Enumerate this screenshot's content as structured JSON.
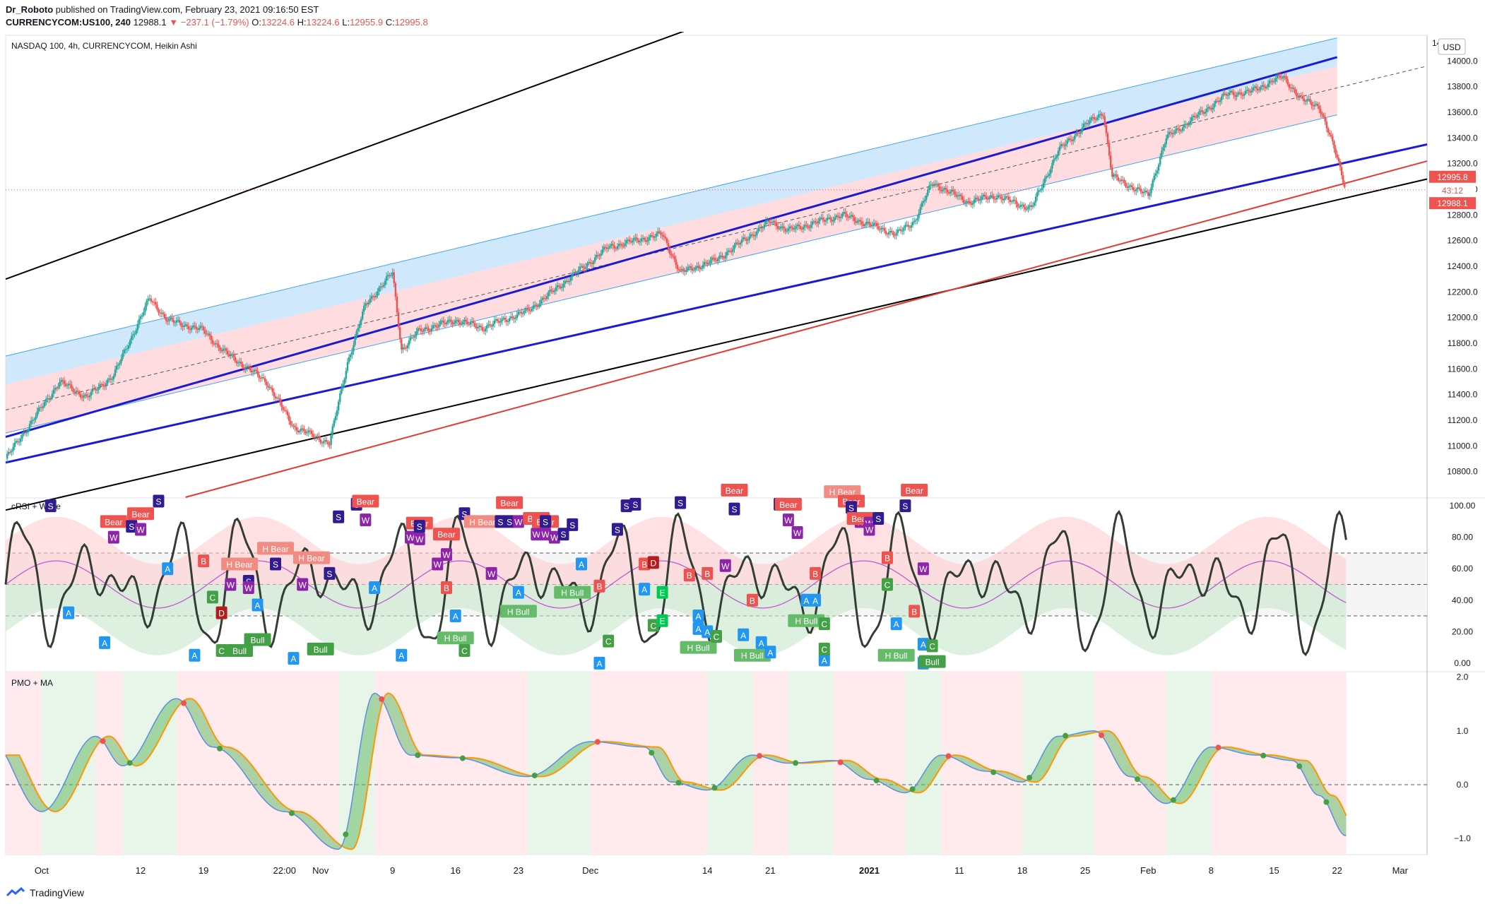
{
  "header": {
    "publisher": "Dr_Roboto",
    "published_text": "published on TradingView.com, February 23, 2021 09:16:50 EST",
    "symbol": "CURRENCYCOM:US100, 240",
    "last": "12988.1",
    "change": "−237.1 (−1.79%)",
    "o_label": "O:",
    "o": "13224.6",
    "h_label": "H:",
    "h": "13224.6",
    "l_label": "L:",
    "l": "12955.9",
    "c_label": "C:",
    "c": "12995.8"
  },
  "footer": {
    "brand": "TradingView"
  },
  "colors": {
    "up": "#26a69a",
    "down": "#ef5350",
    "blue_line": "#1a1ad6",
    "channel_blue": "#bbdefb",
    "channel_red": "#ffcdd2",
    "rsi_line": "#333d33",
    "ma_pink": "#c05ad0",
    "pmo_green": "#4caf50",
    "pmo_orange": "#ff9800",
    "pmo_blue": "#5b8ee6",
    "bg_green": "#e8f5e9",
    "bg_red": "#ffebee"
  },
  "chart_data": [
    {
      "type": "candlestick",
      "title": "NASDAQ 100, 4h, CURRENCYCOM, Heikin Ashi",
      "currency": "USD",
      "ylim": [
        10600,
        14200
      ],
      "yticks": [
        "10800.0",
        "11000.0",
        "11200.0",
        "11400.0",
        "11600.0",
        "11800.0",
        "12000.0",
        "12200.0",
        "12400.0",
        "12600.0",
        "12800.0",
        "13000.0",
        "13200.0",
        "13400.0",
        "13600.0",
        "13800.0",
        "14000.0"
      ],
      "ytick_values": [
        10800,
        11000,
        11200,
        11400,
        11600,
        11800,
        12000,
        12200,
        12400,
        12600,
        12800,
        13000,
        13200,
        13400,
        13600,
        13800,
        14000
      ],
      "top_tick_partial": "14",
      "xticks": [
        "Oct",
        "12",
        "19",
        "22:00",
        "Nov",
        "9",
        "16",
        "23",
        "Dec",
        "14",
        "21",
        "2021",
        "11",
        "18",
        "25",
        "Feb",
        "8",
        "15",
        "22",
        "Mar"
      ],
      "x_bold": [
        "2021"
      ],
      "price_labels": [
        "12995.8",
        "43:12",
        "12988.1"
      ],
      "price_label_values": [
        12995.8,
        12990.0,
        12988.1
      ],
      "price_path": [
        [
          "Oct 1",
          11300
        ],
        [
          "Oct 3",
          11500
        ],
        [
          "Oct 6",
          11380
        ],
        [
          "Oct 9",
          11550
        ],
        [
          "Oct 13",
          12150
        ],
        [
          "Oct 15",
          11980
        ],
        [
          "Oct 19",
          11900
        ],
        [
          "Oct 21",
          11750
        ],
        [
          "Oct 26",
          11500
        ],
        [
          "Oct 29",
          11150
        ],
        [
          "Nov 2",
          11020
        ],
        [
          "Nov 4",
          11650
        ],
        [
          "Nov 6",
          12100
        ],
        [
          "Nov 9",
          12350
        ],
        [
          "Nov 10",
          11750
        ],
        [
          "Nov 12",
          11900
        ],
        [
          "Nov 16",
          11980
        ],
        [
          "Nov 19",
          11920
        ],
        [
          "Nov 24",
          12050
        ],
        [
          "Nov 30",
          12380
        ],
        [
          "Dec 3",
          12550
        ],
        [
          "Dec 9",
          12650
        ],
        [
          "Dec 11",
          12350
        ],
        [
          "Dec 15",
          12450
        ],
        [
          "Dec 21",
          12750
        ],
        [
          "Dec 23",
          12680
        ],
        [
          "Dec 29",
          12800
        ],
        [
          "Jan 4",
          12650
        ],
        [
          "Jan 6",
          12750
        ],
        [
          "Jan 8",
          13050
        ],
        [
          "Jan 12",
          12900
        ],
        [
          "Jan 15",
          12950
        ],
        [
          "Jan 19",
          12850
        ],
        [
          "Jan 22",
          13300
        ],
        [
          "Jan 25",
          13500
        ],
        [
          "Jan 27",
          13600
        ],
        [
          "Jan 28",
          13100
        ],
        [
          "Feb 1",
          12950
        ],
        [
          "Feb 3",
          13400
        ],
        [
          "Feb 8",
          13650
        ],
        [
          "Feb 10",
          13750
        ],
        [
          "Feb 12",
          13750
        ],
        [
          "Feb 16",
          13880
        ],
        [
          "Feb 18",
          13700
        ],
        [
          "Feb 20",
          13650
        ],
        [
          "Feb 22",
          13250
        ],
        [
          "Feb 23",
          12995.8
        ]
      ]
    },
    {
      "type": "line",
      "title": "cRSI + Wave",
      "ylim": [
        -5,
        105
      ],
      "yticks": [
        "0.00",
        "20.00",
        "40.00",
        "60.00",
        "80.00",
        "100.00"
      ],
      "ytick_values": [
        0,
        20,
        40,
        60,
        80,
        100
      ],
      "levels": [
        30,
        50,
        70
      ],
      "labels": [
        "Bear",
        "H Bear",
        "Bull",
        "H Bull",
        "A",
        "B",
        "C",
        "D",
        "E",
        "S",
        "W"
      ],
      "placed_labels": [
        [
          "S",
          "Oct 2",
          100
        ],
        [
          "A",
          "Oct 4",
          32
        ],
        [
          "A",
          "Oct 8",
          13
        ],
        [
          "W",
          "Oct 9",
          80
        ],
        [
          "Bear",
          "Oct 9",
          90
        ],
        [
          "S",
          "Oct 11",
          87
        ],
        [
          "W",
          "Oct 12",
          85
        ],
        [
          "Bear",
          "Oct 12",
          95
        ],
        [
          "S",
          "Oct 14",
          103
        ],
        [
          "A",
          "Oct 15",
          60
        ],
        [
          "A",
          "Oct 18",
          5
        ],
        [
          "B",
          "Oct 19",
          65
        ],
        [
          "C",
          "Oct 20",
          42
        ],
        [
          "C",
          "Oct 21",
          8
        ],
        [
          "D",
          "Oct 21",
          32
        ],
        [
          "W",
          "Oct 22",
          50
        ],
        [
          "H Bear",
          "Oct 23",
          63
        ],
        [
          "Bull",
          "Oct 23",
          8
        ],
        [
          "S",
          "Oct 24",
          52
        ],
        [
          "W",
          "Oct 24",
          48
        ],
        [
          "A",
          "Oct 25",
          37
        ],
        [
          "Bull",
          "Oct 25",
          15
        ],
        [
          "S",
          "Oct 27",
          63
        ],
        [
          "H Bear",
          "Oct 27",
          73
        ],
        [
          "A",
          "Oct 29",
          3
        ],
        [
          "W",
          "Oct 30",
          50
        ],
        [
          "H Bear",
          "Oct 31",
          67
        ],
        [
          "Bull",
          "Nov 1",
          9
        ],
        [
          "S",
          "Nov 2",
          57
        ],
        [
          "S",
          "Nov 3",
          93
        ],
        [
          "S",
          "Nov 5",
          101
        ],
        [
          "Bear",
          "Nov 6",
          103
        ],
        [
          "W",
          "Nov 6",
          91
        ],
        [
          "A",
          "Nov 7",
          48
        ],
        [
          "A",
          "Nov 10",
          5
        ],
        [
          "W",
          "Nov 11",
          80
        ],
        [
          "Bear",
          "Nov 12",
          89
        ],
        [
          "W",
          "Nov 12",
          79
        ],
        [
          "S",
          "Nov 12",
          87
        ],
        [
          "W",
          "Nov 14",
          63
        ],
        [
          "Bear",
          "Nov 15",
          82
        ],
        [
          "B",
          "Nov 15",
          48
        ],
        [
          "W",
          "Nov 15",
          69
        ],
        [
          "H Bull",
          "Nov 16",
          16
        ],
        [
          "A",
          "Nov 16",
          30
        ],
        [
          "C",
          "Nov 17",
          8
        ],
        [
          "S",
          "Nov 17",
          95
        ],
        [
          "H Bear",
          "Nov 19",
          90
        ],
        [
          "W",
          "Nov 20",
          57
        ],
        [
          "S",
          "Nov 21",
          90
        ],
        [
          "Bear",
          "Nov 22",
          102
        ],
        [
          "S",
          "Nov 22",
          90
        ],
        [
          "W",
          "Nov 23",
          90
        ],
        [
          "A",
          "Nov 23",
          45
        ],
        [
          "H Bull",
          "Nov 23",
          33
        ],
        [
          "Bear",
          "Nov 25",
          92
        ],
        [
          "W",
          "Nov 25",
          82
        ],
        [
          "Bear",
          "Nov 26",
          90
        ],
        [
          "S",
          "Nov 26",
          90
        ],
        [
          "W",
          "Nov 26",
          82
        ],
        [
          "W",
          "Nov 27",
          80
        ],
        [
          "S",
          "Nov 28",
          82
        ],
        [
          "S",
          "Nov 29",
          88
        ],
        [
          "H Bull",
          "Nov 29",
          45
        ],
        [
          "A",
          "Nov 30",
          63
        ],
        [
          "A",
          "Dec 2",
          0
        ],
        [
          "B",
          "Dec 2",
          49
        ],
        [
          "C",
          "Dec 3",
          14
        ],
        [
          "S",
          "Dec 4",
          85
        ],
        [
          "S",
          "Dec 5",
          100
        ],
        [
          "S",
          "Dec 6",
          101
        ],
        [
          "A",
          "Dec 7",
          47
        ],
        [
          "B",
          "Dec 7",
          63
        ],
        [
          "D",
          "Dec 8",
          64
        ],
        [
          "C",
          "Dec 8",
          24
        ],
        [
          "E",
          "Dec 9",
          45
        ],
        [
          "E",
          "Dec 9",
          27
        ],
        [
          "S",
          "Dec 11",
          102
        ],
        [
          "B",
          "Dec 12",
          56
        ],
        [
          "A",
          "Dec 13",
          30
        ],
        [
          "A",
          "Dec 13",
          22
        ],
        [
          "H Bull",
          "Dec 13",
          10
        ],
        [
          "A",
          "Dec 14",
          20
        ],
        [
          "B",
          "Dec 14",
          57
        ],
        [
          "C",
          "Dec 15",
          17
        ],
        [
          "W",
          "Dec 16",
          62
        ],
        [
          "Bear",
          "Dec 17",
          110
        ],
        [
          "S",
          "Dec 17",
          98
        ],
        [
          "A",
          "Dec 18",
          18
        ],
        [
          "B",
          "Dec 19",
          40
        ],
        [
          "H Bull",
          "Dec 19",
          5
        ],
        [
          "A",
          "Dec 20",
          13
        ],
        [
          "A",
          "Dec 21",
          7
        ],
        [
          "S",
          "Dec 22",
          101
        ],
        [
          "Bear",
          "Dec 23",
          101
        ],
        [
          "W",
          "Dec 23",
          91
        ],
        [
          "W",
          "Dec 24",
          83
        ],
        [
          "A",
          "Dec 25",
          40
        ],
        [
          "H Bull",
          "Dec 25",
          27
        ],
        [
          "A",
          "Dec 26",
          40
        ],
        [
          "B",
          "Dec 26",
          57
        ],
        [
          "A",
          "Dec 27",
          2
        ],
        [
          "C",
          "Dec 27",
          25
        ],
        [
          "C",
          "Dec 27",
          9
        ],
        [
          "H Bear",
          "Dec 29",
          109
        ],
        [
          "Bear",
          "Dec 30",
          103
        ],
        [
          "S",
          "Dec 30",
          99
        ],
        [
          "Bear",
          "Dec 31",
          92
        ],
        [
          "W",
          "Dec 31",
          90
        ],
        [
          "Bear",
          "Dec 31",
          92
        ],
        [
          "W",
          "Jan 1",
          89
        ],
        [
          "W",
          "Jan 1",
          85
        ],
        [
          "S",
          "Jan 2",
          92
        ],
        [
          "B",
          "Jan 3",
          67
        ],
        [
          "C",
          "Jan 3",
          50
        ],
        [
          "A",
          "Jan 4",
          25
        ],
        [
          "H Bull",
          "Jan 4",
          5
        ],
        [
          "S",
          "Jan 5",
          100
        ],
        [
          "Bear",
          "Jan 6",
          110
        ],
        [
          "B",
          "Jan 6",
          33
        ],
        [
          "W",
          "Jan 7",
          60
        ],
        [
          "A",
          "Jan 7",
          12
        ],
        [
          "A",
          "Jan 7",
          0
        ],
        [
          "C",
          "Jan 8",
          11
        ],
        [
          "Bull",
          "Jan 8",
          1
        ]
      ],
      "series": [
        {
          "name": "cRSI"
        },
        {
          "name": "MA"
        }
      ]
    },
    {
      "type": "area",
      "title": "PMO + MA",
      "ylim": [
        -1.3,
        2.1
      ],
      "yticks": [
        "−1.0",
        "0.0",
        "1.0",
        "2.0"
      ],
      "ytick_values": [
        -1,
        0,
        1,
        2
      ],
      "series": [
        {
          "name": "PMO",
          "x": [
            "Oct 1",
            "Oct 7",
            "Oct 10",
            "Oct 16",
            "Oct 20",
            "Oct 28",
            "Nov 3",
            "Nov 7",
            "Nov 11",
            "Nov 16",
            "Nov 24",
            "Dec 1",
            "Dec 7",
            "Dec 10",
            "Dec 14",
            "Dec 19",
            "Dec 23",
            "Dec 28",
            "Jan 1",
            "Jan 5",
            "Jan 9",
            "Jan 14",
            "Jan 18",
            "Jan 22",
            "Jan 26",
            "Jan 30",
            "Feb 3",
            "Feb 8",
            "Feb 13",
            "Feb 17",
            "Feb 20",
            "Feb 23"
          ],
          "values": [
            -0.5,
            0.9,
            0.35,
            1.6,
            0.7,
            -0.5,
            -1.2,
            1.7,
            0.55,
            0.5,
            0.15,
            0.8,
            0.7,
            0.05,
            -0.1,
            0.55,
            0.4,
            0.45,
            0.1,
            -0.15,
            0.55,
            0.25,
            0.05,
            0.9,
            1.0,
            0.15,
            -0.35,
            0.7,
            0.55,
            0.45,
            -0.2,
            -0.95
          ]
        }
      ]
    }
  ]
}
